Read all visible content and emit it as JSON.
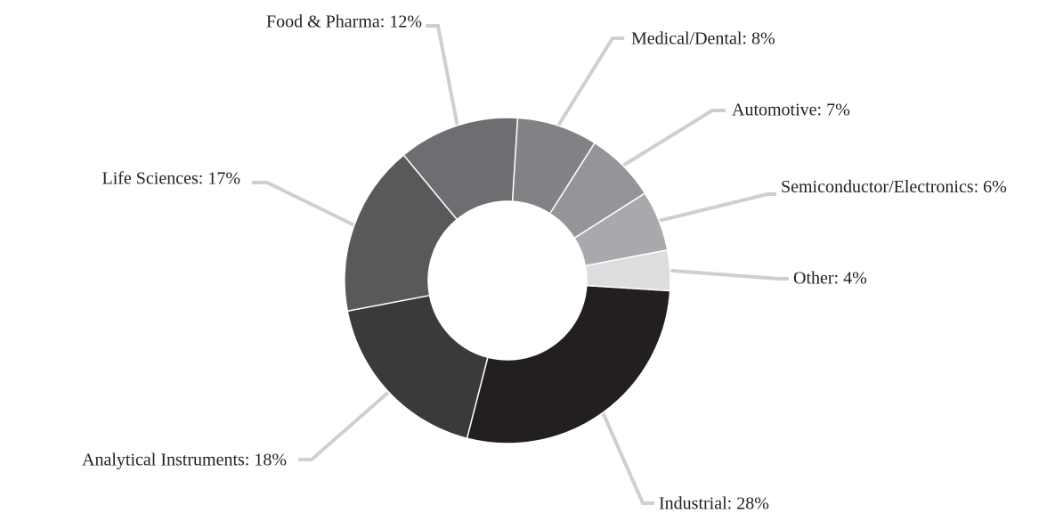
{
  "chart_data": {
    "type": "donut",
    "labels": [
      "Industrial: 28%",
      "Analytical Instruments: 18%",
      "Life Sciences: 17%",
      "Food & Pharma: 12%",
      "Medical/Dental: 8%",
      "Automotive: 7%",
      "Semiconductor/Electronics: 6%",
      "Other: 4%"
    ],
    "values": [
      28,
      18,
      17,
      12,
      8,
      7,
      6,
      4
    ],
    "colors": [
      "#231f20",
      "#3a3a3b",
      "#58595b",
      "#6d6e71",
      "#808285",
      "#939598",
      "#a7a9ac",
      "#dcddde"
    ]
  }
}
